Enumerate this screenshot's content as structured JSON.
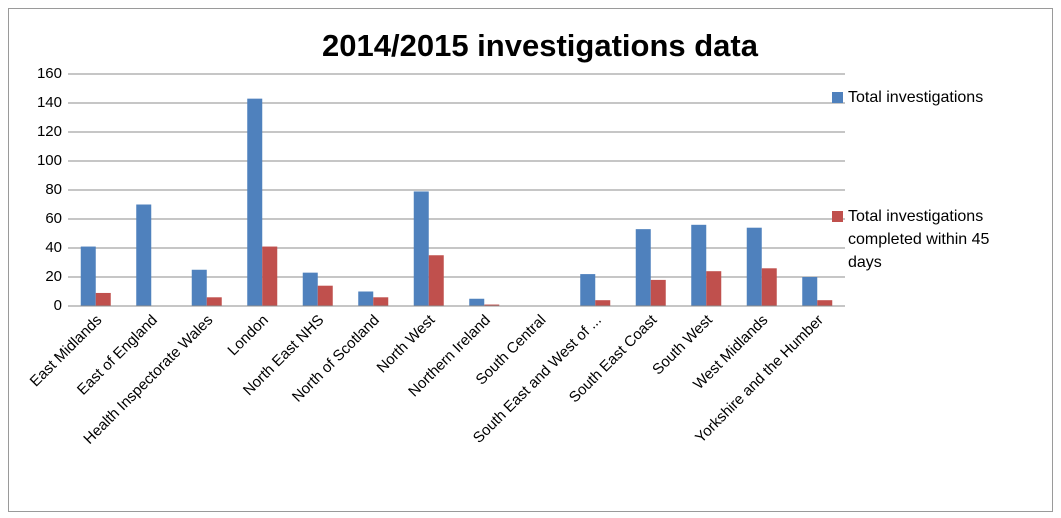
{
  "chart_data": {
    "type": "bar",
    "title": "2014/2015 investigations data",
    "categories": [
      "East Midlands",
      "East of England",
      "Health Inspectorate Wales",
      "London",
      "North East NHS",
      "North of Scotland",
      "North West",
      "Northern Ireland",
      "South Central",
      "South East and West of ...",
      "South East Coast",
      "South West",
      "West Midlands",
      "Yorkshire and the Humber"
    ],
    "series": [
      {
        "name": "Total investigations",
        "color": "#4f81bd",
        "values": [
          41,
          70,
          25,
          143,
          23,
          10,
          79,
          5,
          0,
          22,
          53,
          56,
          54,
          20
        ]
      },
      {
        "name": "Total investigations completed within 45 days",
        "color": "#c0504d",
        "values": [
          9,
          0,
          6,
          41,
          14,
          6,
          35,
          1,
          0,
          4,
          18,
          24,
          26,
          4
        ]
      }
    ],
    "ylim": [
      0,
      160
    ],
    "yticks": [
      0,
      20,
      40,
      60,
      80,
      100,
      120,
      140,
      160
    ],
    "grid": true,
    "legend": "right"
  }
}
